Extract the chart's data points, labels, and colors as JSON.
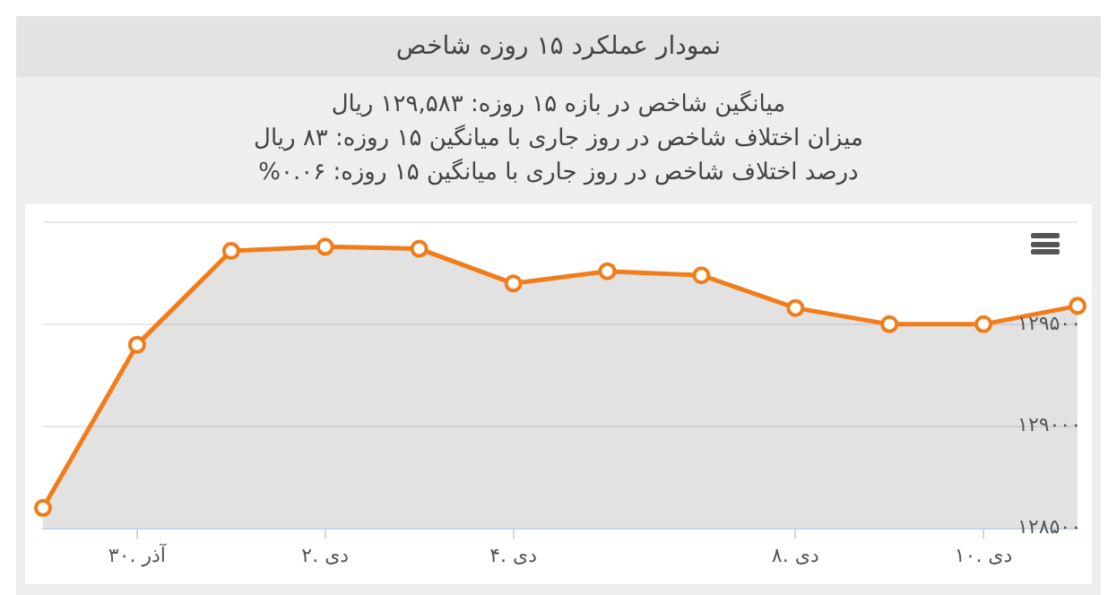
{
  "chart_data": {
    "type": "area",
    "title": "نمودار عملکرد ۱۵ روزه شاخص",
    "annotations": [
      "میانگین شاخص در بازه ۱۵ روزه: ۱۲۹,۵۸۳ ریال",
      "میزان اختلاف شاخص در روز جاری با میانگین ۱۵ روزه: ۸۳ ریال",
      "درصد اختلاف شاخص در روز جاری با میانگین ۱۵ روزه: ۰.۰۶%"
    ],
    "categories": [
      null,
      "۳۰. آذر",
      null,
      "۲. دی",
      null,
      "۴. دی",
      null,
      null,
      "۸. دی",
      null,
      "۱۰. دی",
      null
    ],
    "series": [
      {
        "color": "#f07d1a",
        "values": [
          128600,
          129400,
          129860,
          129880,
          129870,
          129700,
          129760,
          129740,
          129580,
          129500,
          129500,
          129590
        ]
      }
    ],
    "ylim": [
      128500,
      130000
    ],
    "yticks": [
      {
        "value": 128500,
        "label": "۱۲۸۵۰۰"
      },
      {
        "value": 129000,
        "label": "۱۲۹۰۰۰"
      },
      {
        "value": 129500,
        "label": "۱۲۹۵۰۰"
      },
      {
        "value": 130000,
        "label": null
      }
    ],
    "grid": "y",
    "legend": false,
    "marker": "circle"
  }
}
